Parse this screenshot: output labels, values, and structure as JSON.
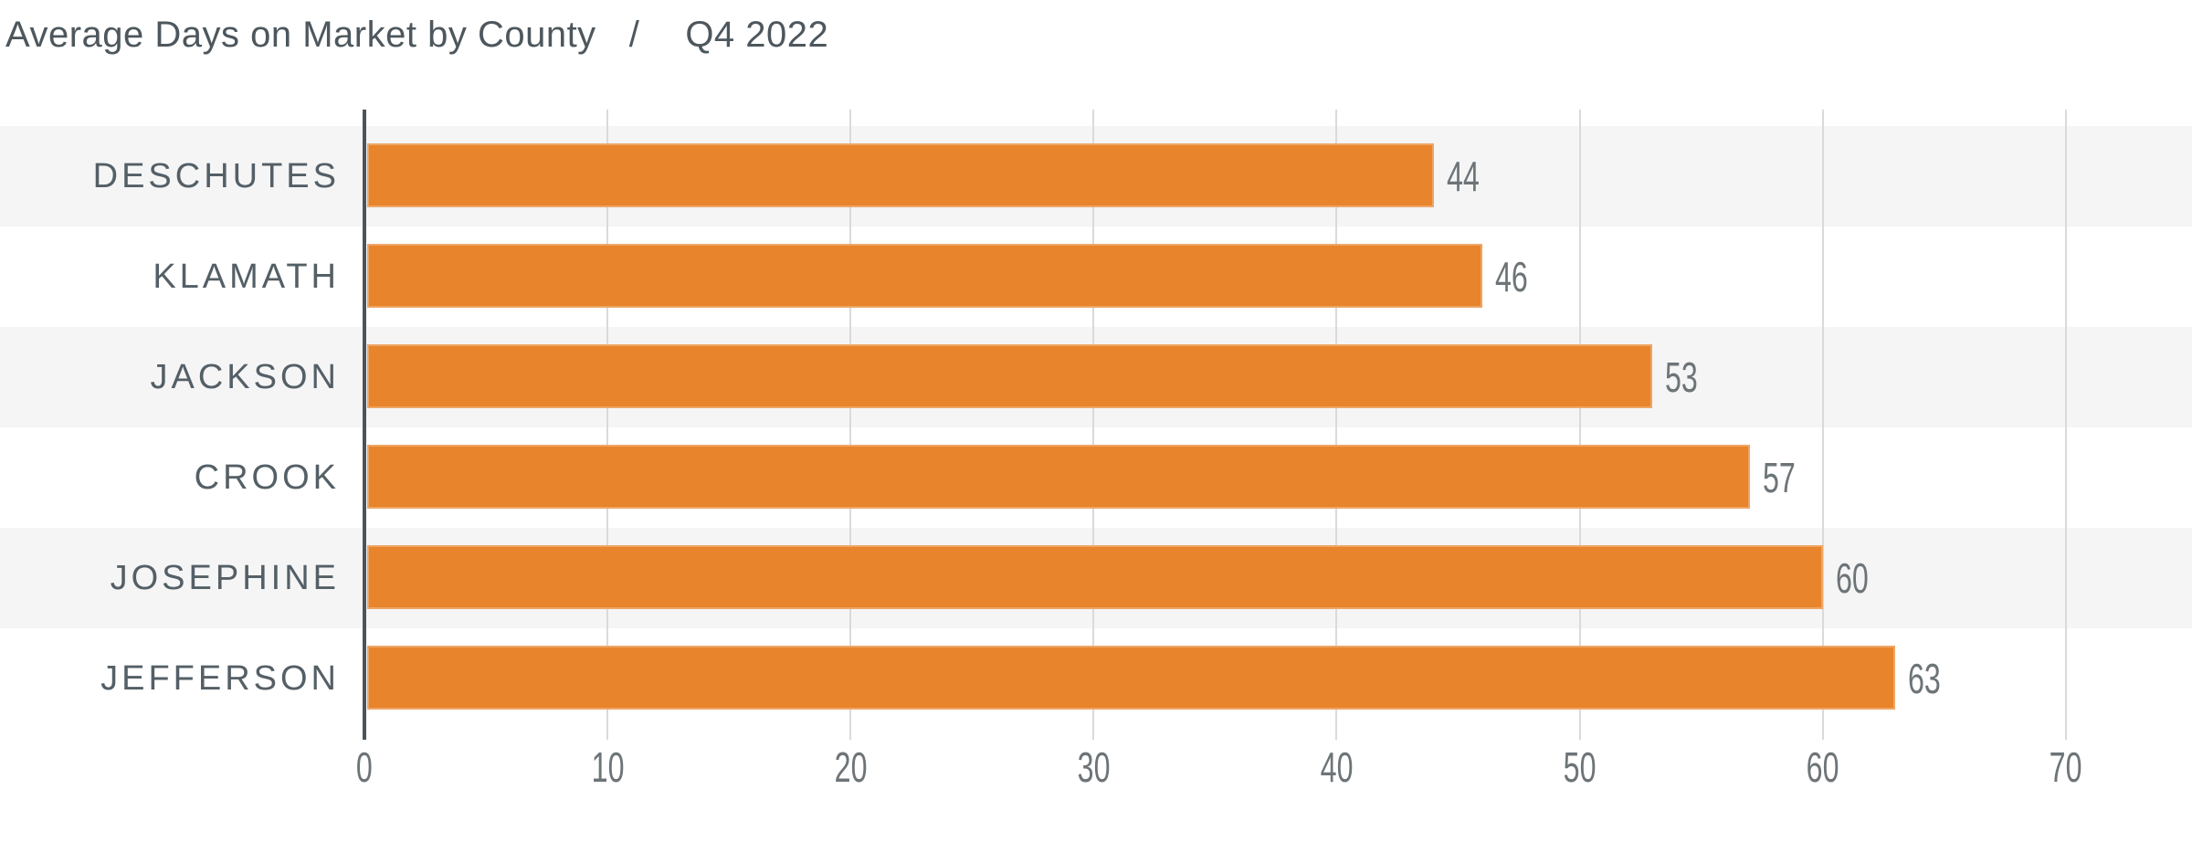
{
  "header": {
    "title": "Average Days on Market by County",
    "separator": "/",
    "period": "Q4 2022"
  },
  "chart_data": {
    "type": "bar",
    "orientation": "horizontal",
    "title": "Average Days on Market by County",
    "subtitle": "Q4 2022",
    "categories": [
      "DESCHUTES",
      "KLAMATH",
      "JACKSON",
      "CROOK",
      "JOSEPHINE",
      "JEFFERSON"
    ],
    "values": [
      44,
      46,
      53,
      57,
      60,
      63
    ],
    "xlabel": "",
    "ylabel": "",
    "xlim": [
      0,
      75
    ],
    "x_ticks": [
      0,
      10,
      20,
      30,
      40,
      50,
      60,
      70
    ],
    "grid": true,
    "legend": "none",
    "band_striping": "alternate rows shaded starting with first row",
    "colors": {
      "bar": "#e8842b",
      "band": "#f5f5f6",
      "axis": "#4a545a",
      "gridline": "#d9dadb",
      "title_text": "#4d575d",
      "category_text": "#545f66",
      "value_text": "#6d7478"
    }
  }
}
